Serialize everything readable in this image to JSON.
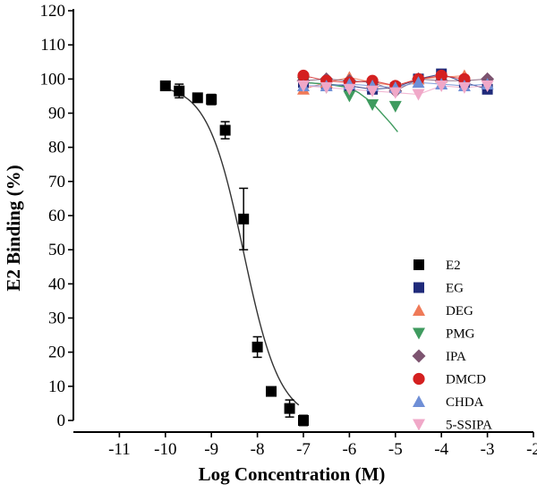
{
  "chart_data": {
    "type": "scatter",
    "title": "",
    "xlabel": "Log Concentration (M)",
    "ylabel": "E2 Binding (%)",
    "xlim": [
      -12,
      -2
    ],
    "ylim": [
      0,
      120
    ],
    "xticks": [
      -11,
      -10,
      -9,
      -8,
      -7,
      -6,
      -5,
      -4,
      -3,
      -2
    ],
    "yticks": [
      0,
      10,
      20,
      30,
      40,
      50,
      60,
      70,
      80,
      90,
      100,
      110,
      120
    ],
    "legend_position": "right",
    "series": [
      {
        "name": "E2",
        "marker": "square",
        "color": "#000000",
        "points": [
          {
            "x": -10,
            "y": 98,
            "err": 0
          },
          {
            "x": -9.7,
            "y": 96.5,
            "err": 2
          },
          {
            "x": -9.3,
            "y": 94.5,
            "err": 0
          },
          {
            "x": -9,
            "y": 94,
            "err": 1.5
          },
          {
            "x": -8.7,
            "y": 85,
            "err": 2.5
          },
          {
            "x": -8.3,
            "y": 59,
            "err": 9
          },
          {
            "x": -8,
            "y": 21.5,
            "err": 3
          },
          {
            "x": -7.7,
            "y": 8.5,
            "err": 0
          },
          {
            "x": -7.3,
            "y": 3.5,
            "err": 2.5
          },
          {
            "x": -7,
            "y": 0,
            "err": 1.5
          }
        ],
        "fit": {
          "top": 98.5,
          "bottom": 0,
          "logIC50": -8.3,
          "hill": -1.1,
          "xrange": [
            -9.9,
            -7.1
          ]
        }
      },
      {
        "name": "EG",
        "marker": "square",
        "color": "#1f2a7a",
        "points": [
          {
            "x": -7,
            "y": 99
          },
          {
            "x": -6.5,
            "y": 98.5
          },
          {
            "x": -6,
            "y": 98
          },
          {
            "x": -5.5,
            "y": 97
          },
          {
            "x": -5,
            "y": 97.5
          },
          {
            "x": -4.5,
            "y": 100
          },
          {
            "x": -4,
            "y": 101.5
          },
          {
            "x": -3.5,
            "y": 99
          },
          {
            "x": -3,
            "y": 97
          }
        ]
      },
      {
        "name": "DEG",
        "marker": "triangle-up",
        "color": "#ef7a58",
        "points": [
          {
            "x": -7,
            "y": 97
          },
          {
            "x": -6.5,
            "y": 99
          },
          {
            "x": -6,
            "y": 100.5
          },
          {
            "x": -5.5,
            "y": 99
          },
          {
            "x": -5,
            "y": 98
          },
          {
            "x": -4.5,
            "y": 100
          },
          {
            "x": -4,
            "y": 100.5
          },
          {
            "x": -3.5,
            "y": 101
          }
        ]
      },
      {
        "name": "PMG",
        "marker": "triangle-down",
        "color": "#3f9b5f",
        "points": [
          {
            "x": -7,
            "y": 99
          },
          {
            "x": -6.5,
            "y": 97.5
          },
          {
            "x": -6,
            "y": 95
          },
          {
            "x": -5.5,
            "y": 92.5
          },
          {
            "x": -5,
            "y": 92
          }
        ],
        "fit_line": [
          [
            -7,
            99
          ],
          [
            -6.5,
            98.5
          ],
          [
            -6,
            97.5
          ],
          [
            -5.8,
            96
          ],
          [
            -5.5,
            93
          ],
          [
            -5.3,
            90
          ],
          [
            -5.1,
            87
          ],
          [
            -4.95,
            84.5
          ]
        ]
      },
      {
        "name": "IPA",
        "marker": "diamond",
        "color": "#7d5470",
        "points": [
          {
            "x": -7,
            "y": 99.5
          },
          {
            "x": -6.5,
            "y": 100
          },
          {
            "x": -6,
            "y": 99.5
          },
          {
            "x": -5.5,
            "y": 99
          },
          {
            "x": -5,
            "y": 96.5
          },
          {
            "x": -4.5,
            "y": 100
          },
          {
            "x": -4,
            "y": 99.5
          },
          {
            "x": -3.5,
            "y": 99.5
          },
          {
            "x": -3,
            "y": 100
          }
        ]
      },
      {
        "name": "DMCD",
        "marker": "circle",
        "color": "#d42020",
        "points": [
          {
            "x": -7,
            "y": 101
          },
          {
            "x": -6.5,
            "y": 99.5
          },
          {
            "x": -6,
            "y": 99
          },
          {
            "x": -5.5,
            "y": 99.5
          },
          {
            "x": -5,
            "y": 98
          },
          {
            "x": -4.5,
            "y": 100
          },
          {
            "x": -4,
            "y": 101
          },
          {
            "x": -3.5,
            "y": 100
          }
        ]
      },
      {
        "name": "CHDA",
        "marker": "triangle-up",
        "color": "#6f8fd6",
        "points": [
          {
            "x": -7,
            "y": 98
          },
          {
            "x": -6.5,
            "y": 98
          },
          {
            "x": -6,
            "y": 98.5
          },
          {
            "x": -5.5,
            "y": 98
          },
          {
            "x": -5,
            "y": 97.5
          },
          {
            "x": -4.5,
            "y": 99
          },
          {
            "x": -4,
            "y": 98.5
          },
          {
            "x": -3.5,
            "y": 98
          },
          {
            "x": -3,
            "y": 98.5
          }
        ]
      },
      {
        "name": "5-SSIPA",
        "marker": "triangle-down",
        "color": "#f0a8c8",
        "points": [
          {
            "x": -7,
            "y": 98
          },
          {
            "x": -6.5,
            "y": 97.5
          },
          {
            "x": -6,
            "y": 97
          },
          {
            "x": -5.5,
            "y": 96.5
          },
          {
            "x": -5,
            "y": 96
          },
          {
            "x": -4.5,
            "y": 95.5
          },
          {
            "x": -4,
            "y": 98
          },
          {
            "x": -3.5,
            "y": 97.5
          },
          {
            "x": -3,
            "y": 98
          }
        ]
      }
    ]
  }
}
